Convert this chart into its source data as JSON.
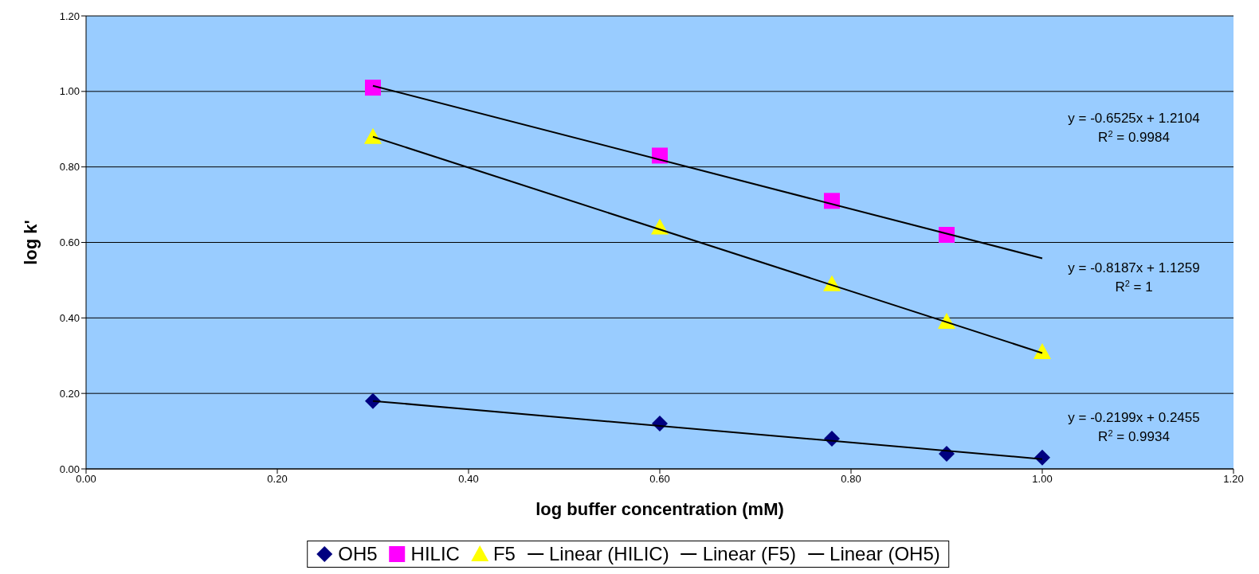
{
  "chart_data": {
    "type": "scatter",
    "xlabel": "log buffer concentration (mM)",
    "ylabel": "log k'",
    "xlim": [
      0,
      1.2
    ],
    "ylim": [
      0,
      1.2
    ],
    "xticks": [
      {
        "value": 0,
        "label": "0.00"
      },
      {
        "value": 0.2,
        "label": "0.20"
      },
      {
        "value": 0.4,
        "label": "0.40"
      },
      {
        "value": 0.6,
        "label": "0.60"
      },
      {
        "value": 0.8,
        "label": "0.80"
      },
      {
        "value": 1.0,
        "label": "1.00"
      },
      {
        "value": 1.2,
        "label": "1.20"
      }
    ],
    "yticks": [
      {
        "value": 0,
        "label": "0.00"
      },
      {
        "value": 0.2,
        "label": "0.20"
      },
      {
        "value": 0.4,
        "label": "0.40"
      },
      {
        "value": 0.6,
        "label": "0.60"
      },
      {
        "value": 0.8,
        "label": "0.80"
      },
      {
        "value": 1.0,
        "label": "1.00"
      },
      {
        "value": 1.2,
        "label": "1.20"
      }
    ],
    "grid": "y",
    "legend": "bottom",
    "series": [
      {
        "name": "OH5",
        "marker": "diamond",
        "color": "#000080",
        "x": [
          0.3,
          0.6,
          0.78,
          0.9,
          1.0
        ],
        "values": [
          0.18,
          0.12,
          0.08,
          0.04,
          0.03
        ]
      },
      {
        "name": "HILIC",
        "marker": "square",
        "color": "#ff00ff",
        "x": [
          0.3,
          0.6,
          0.78,
          0.9
        ],
        "values": [
          1.01,
          0.83,
          0.71,
          0.62
        ]
      },
      {
        "name": "F5",
        "marker": "triangle",
        "color": "#ffff00",
        "x": [
          0.3,
          0.6,
          0.78,
          0.9,
          1.0
        ],
        "values": [
          0.88,
          0.64,
          0.49,
          0.39,
          0.31
        ]
      },
      {
        "name": "Linear (HILIC)",
        "type": "line",
        "marker": "none",
        "color": "#000000",
        "x": [
          0.3,
          1.0
        ],
        "values": [
          1.015,
          0.558
        ]
      },
      {
        "name": "Linear (F5)",
        "type": "line",
        "marker": "none",
        "color": "#000000",
        "x": [
          0.3,
          1.0
        ],
        "values": [
          0.88,
          0.307
        ]
      },
      {
        "name": "Linear (OH5)",
        "type": "line",
        "marker": "none",
        "color": "#000000",
        "x": [
          0.3,
          1.0
        ],
        "values": [
          0.18,
          0.026
        ]
      }
    ],
    "annotations": [
      "y = -0.6525x + 1.2104\nR$^{2}$ = 0.9984",
      "y = -0.8187x + 1.1259\nR$^{2}$ = 1",
      "y = -0.2199x + 0.2455\nR$^{2}$ = 0.9934"
    ]
  }
}
